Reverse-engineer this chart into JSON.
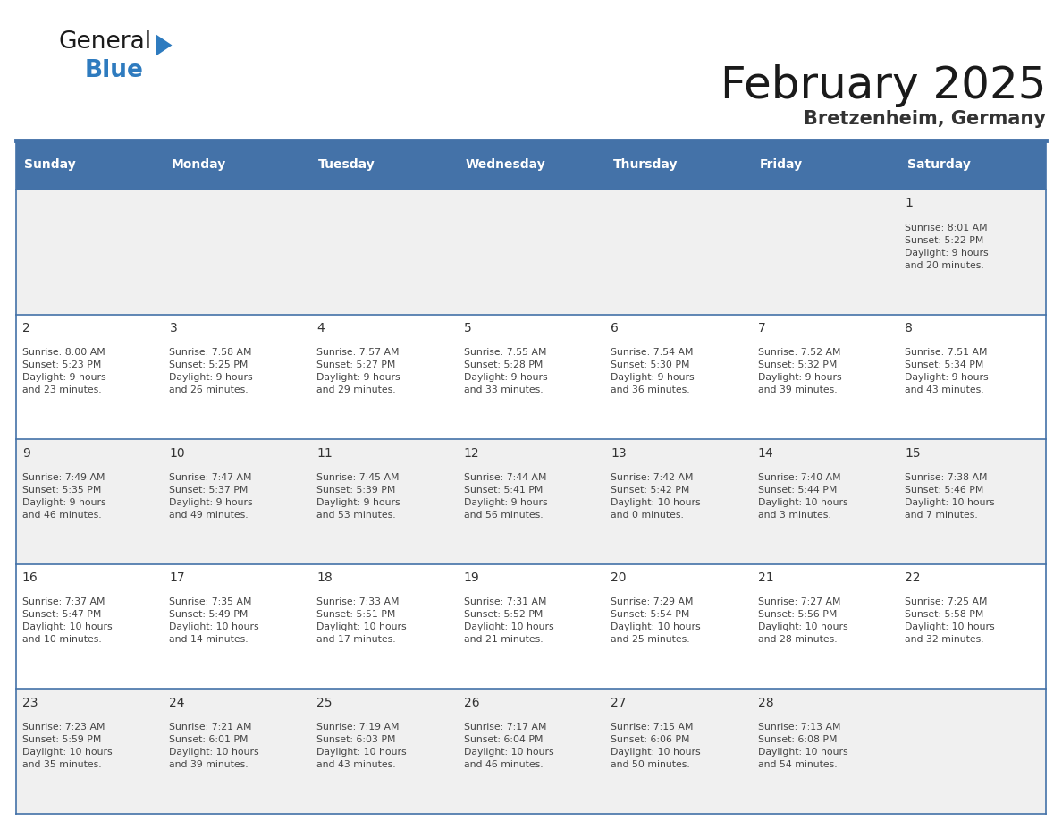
{
  "title": "February 2025",
  "subtitle": "Bretzenheim, Germany",
  "days_of_week": [
    "Sunday",
    "Monday",
    "Tuesday",
    "Wednesday",
    "Thursday",
    "Friday",
    "Saturday"
  ],
  "header_bg": "#4472a8",
  "header_text": "#ffffff",
  "cell_bg_light": "#f0f0f0",
  "cell_bg_white": "#ffffff",
  "cell_border_color": "#4472a8",
  "day_number_color": "#333333",
  "info_text_color": "#444444",
  "title_color": "#1a1a1a",
  "subtitle_color": "#333333",
  "logo_general_color": "#1a1a1a",
  "logo_blue_color": "#2e7bbf",
  "separator_color": "#4472a8",
  "weeks": [
    [
      {
        "day": null,
        "info": null
      },
      {
        "day": null,
        "info": null
      },
      {
        "day": null,
        "info": null
      },
      {
        "day": null,
        "info": null
      },
      {
        "day": null,
        "info": null
      },
      {
        "day": null,
        "info": null
      },
      {
        "day": 1,
        "info": "Sunrise: 8:01 AM\nSunset: 5:22 PM\nDaylight: 9 hours\nand 20 minutes."
      }
    ],
    [
      {
        "day": 2,
        "info": "Sunrise: 8:00 AM\nSunset: 5:23 PM\nDaylight: 9 hours\nand 23 minutes."
      },
      {
        "day": 3,
        "info": "Sunrise: 7:58 AM\nSunset: 5:25 PM\nDaylight: 9 hours\nand 26 minutes."
      },
      {
        "day": 4,
        "info": "Sunrise: 7:57 AM\nSunset: 5:27 PM\nDaylight: 9 hours\nand 29 minutes."
      },
      {
        "day": 5,
        "info": "Sunrise: 7:55 AM\nSunset: 5:28 PM\nDaylight: 9 hours\nand 33 minutes."
      },
      {
        "day": 6,
        "info": "Sunrise: 7:54 AM\nSunset: 5:30 PM\nDaylight: 9 hours\nand 36 minutes."
      },
      {
        "day": 7,
        "info": "Sunrise: 7:52 AM\nSunset: 5:32 PM\nDaylight: 9 hours\nand 39 minutes."
      },
      {
        "day": 8,
        "info": "Sunrise: 7:51 AM\nSunset: 5:34 PM\nDaylight: 9 hours\nand 43 minutes."
      }
    ],
    [
      {
        "day": 9,
        "info": "Sunrise: 7:49 AM\nSunset: 5:35 PM\nDaylight: 9 hours\nand 46 minutes."
      },
      {
        "day": 10,
        "info": "Sunrise: 7:47 AM\nSunset: 5:37 PM\nDaylight: 9 hours\nand 49 minutes."
      },
      {
        "day": 11,
        "info": "Sunrise: 7:45 AM\nSunset: 5:39 PM\nDaylight: 9 hours\nand 53 minutes."
      },
      {
        "day": 12,
        "info": "Sunrise: 7:44 AM\nSunset: 5:41 PM\nDaylight: 9 hours\nand 56 minutes."
      },
      {
        "day": 13,
        "info": "Sunrise: 7:42 AM\nSunset: 5:42 PM\nDaylight: 10 hours\nand 0 minutes."
      },
      {
        "day": 14,
        "info": "Sunrise: 7:40 AM\nSunset: 5:44 PM\nDaylight: 10 hours\nand 3 minutes."
      },
      {
        "day": 15,
        "info": "Sunrise: 7:38 AM\nSunset: 5:46 PM\nDaylight: 10 hours\nand 7 minutes."
      }
    ],
    [
      {
        "day": 16,
        "info": "Sunrise: 7:37 AM\nSunset: 5:47 PM\nDaylight: 10 hours\nand 10 minutes."
      },
      {
        "day": 17,
        "info": "Sunrise: 7:35 AM\nSunset: 5:49 PM\nDaylight: 10 hours\nand 14 minutes."
      },
      {
        "day": 18,
        "info": "Sunrise: 7:33 AM\nSunset: 5:51 PM\nDaylight: 10 hours\nand 17 minutes."
      },
      {
        "day": 19,
        "info": "Sunrise: 7:31 AM\nSunset: 5:52 PM\nDaylight: 10 hours\nand 21 minutes."
      },
      {
        "day": 20,
        "info": "Sunrise: 7:29 AM\nSunset: 5:54 PM\nDaylight: 10 hours\nand 25 minutes."
      },
      {
        "day": 21,
        "info": "Sunrise: 7:27 AM\nSunset: 5:56 PM\nDaylight: 10 hours\nand 28 minutes."
      },
      {
        "day": 22,
        "info": "Sunrise: 7:25 AM\nSunset: 5:58 PM\nDaylight: 10 hours\nand 32 minutes."
      }
    ],
    [
      {
        "day": 23,
        "info": "Sunrise: 7:23 AM\nSunset: 5:59 PM\nDaylight: 10 hours\nand 35 minutes."
      },
      {
        "day": 24,
        "info": "Sunrise: 7:21 AM\nSunset: 6:01 PM\nDaylight: 10 hours\nand 39 minutes."
      },
      {
        "day": 25,
        "info": "Sunrise: 7:19 AM\nSunset: 6:03 PM\nDaylight: 10 hours\nand 43 minutes."
      },
      {
        "day": 26,
        "info": "Sunrise: 7:17 AM\nSunset: 6:04 PM\nDaylight: 10 hours\nand 46 minutes."
      },
      {
        "day": 27,
        "info": "Sunrise: 7:15 AM\nSunset: 6:06 PM\nDaylight: 10 hours\nand 50 minutes."
      },
      {
        "day": 28,
        "info": "Sunrise: 7:13 AM\nSunset: 6:08 PM\nDaylight: 10 hours\nand 54 minutes."
      },
      {
        "day": null,
        "info": null
      }
    ]
  ]
}
